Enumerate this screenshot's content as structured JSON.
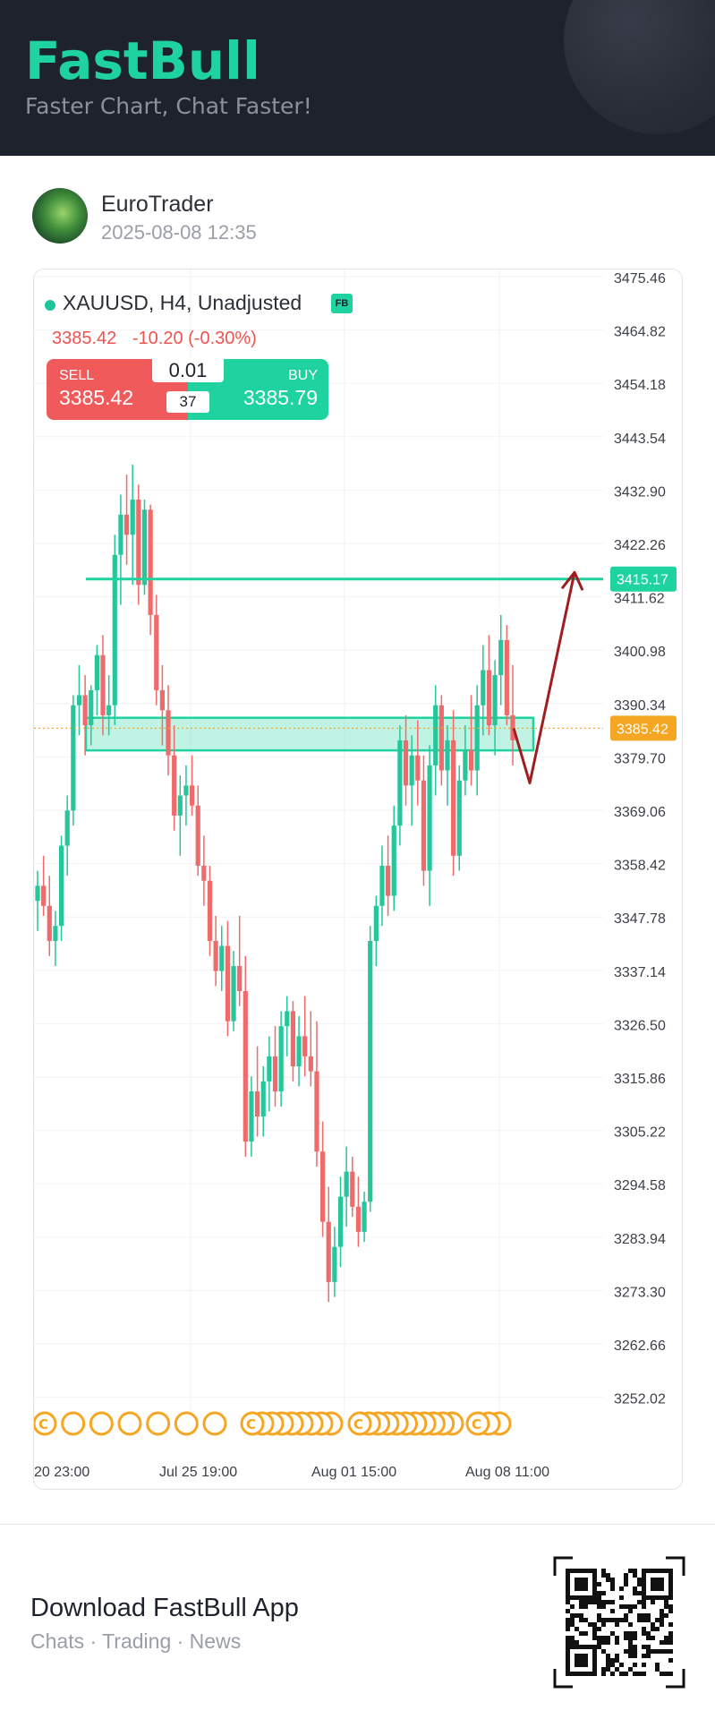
{
  "header": {
    "brand": "FastBull",
    "tagline": "Faster Chart, Chat Faster!"
  },
  "post": {
    "username": "EuroTrader",
    "datetime": "2025-08-08 12:35"
  },
  "instrument": {
    "label": "XAUUSD, H4, Unadjusted",
    "badge": "FB",
    "last_price": "3385.42",
    "change": "-10.20 (-0.30%)"
  },
  "trade_widget": {
    "sell_label": "SELL",
    "sell_price": "3385.42",
    "buy_label": "BUY",
    "buy_price": "3385.79",
    "quantity": "0.01",
    "spread": "37"
  },
  "chart_data": {
    "type": "candlestick",
    "symbol": "XAUUSD",
    "timeframe": "H4",
    "y_ticks": [
      "3475.46",
      "3464.82",
      "3454.18",
      "3443.54",
      "3432.90",
      "3422.26",
      "3411.62",
      "3400.98",
      "3390.34",
      "3379.70",
      "3369.06",
      "3358.42",
      "3347.78",
      "3337.14",
      "3326.50",
      "3315.86",
      "3305.22",
      "3294.58",
      "3283.94",
      "3273.30",
      "3262.66",
      "3252.02"
    ],
    "y_range": [
      3252.02,
      3475.46
    ],
    "x_ticks": [
      "20 23:00",
      "Jul 25 19:00",
      "Aug 01 15:00",
      "Aug 08 11:00"
    ],
    "current_price_label": "3385.42",
    "resistance_label": "3415.17",
    "resistance_level": 3415.17,
    "support_zone": [
      3381.0,
      3387.5
    ],
    "projection_path": [
      3385.42,
      3374.5,
      3416.5
    ],
    "ohlc_sequence": [
      [
        3351,
        3357,
        3345,
        3354
      ],
      [
        3354,
        3360,
        3348,
        3350
      ],
      [
        3350,
        3356,
        3340,
        3343
      ],
      [
        3343,
        3349,
        3338,
        3346
      ],
      [
        3346,
        3364,
        3343,
        3362
      ],
      [
        3362,
        3372,
        3356,
        3369
      ],
      [
        3369,
        3392,
        3366,
        3390
      ],
      [
        3390,
        3398,
        3384,
        3392
      ],
      [
        3392,
        3396,
        3380,
        3386
      ],
      [
        3386,
        3394,
        3382,
        3393
      ],
      [
        3393,
        3402,
        3388,
        3400
      ],
      [
        3400,
        3404,
        3384,
        3388
      ],
      [
        3388,
        3396,
        3384,
        3390
      ],
      [
        3390,
        3424,
        3386,
        3420
      ],
      [
        3420,
        3432,
        3410,
        3428
      ],
      [
        3428,
        3436,
        3418,
        3424
      ],
      [
        3424,
        3438,
        3414,
        3431
      ],
      [
        3431,
        3434,
        3410,
        3414
      ],
      [
        3414,
        3431,
        3412,
        3429
      ],
      [
        3429,
        3430,
        3404,
        3408
      ],
      [
        3408,
        3412,
        3390,
        3393
      ],
      [
        3393,
        3398,
        3382,
        3389
      ],
      [
        3389,
        3394,
        3376,
        3380
      ],
      [
        3380,
        3386,
        3365,
        3368
      ],
      [
        3368,
        3376,
        3360,
        3372
      ],
      [
        3372,
        3378,
        3366,
        3374
      ],
      [
        3374,
        3380,
        3368,
        3370
      ],
      [
        3370,
        3374,
        3356,
        3358
      ],
      [
        3358,
        3364,
        3350,
        3355
      ],
      [
        3355,
        3358,
        3340,
        3343
      ],
      [
        3343,
        3348,
        3334,
        3337
      ],
      [
        3337,
        3346,
        3333,
        3342
      ],
      [
        3342,
        3347,
        3324,
        3327
      ],
      [
        3327,
        3341,
        3325,
        3338
      ],
      [
        3338,
        3348,
        3330,
        3333
      ],
      [
        3333,
        3340,
        3300,
        3303
      ],
      [
        3303,
        3316,
        3300,
        3313
      ],
      [
        3313,
        3322,
        3304,
        3308
      ],
      [
        3308,
        3318,
        3304,
        3315
      ],
      [
        3315,
        3324,
        3309,
        3320
      ],
      [
        3320,
        3326,
        3310,
        3313
      ],
      [
        3313,
        3329,
        3310,
        3326
      ],
      [
        3326,
        3332,
        3320,
        3329
      ],
      [
        3329,
        3331,
        3315,
        3318
      ],
      [
        3318,
        3328,
        3314,
        3324
      ],
      [
        3324,
        3332,
        3316,
        3320
      ],
      [
        3320,
        3329,
        3314,
        3317
      ],
      [
        3317,
        3327,
        3298,
        3301
      ],
      [
        3301,
        3307,
        3284,
        3287
      ],
      [
        3287,
        3294,
        3271,
        3275
      ],
      [
        3275,
        3286,
        3272,
        3282
      ],
      [
        3282,
        3296,
        3278,
        3292
      ],
      [
        3292,
        3302,
        3286,
        3297
      ],
      [
        3297,
        3300,
        3288,
        3290
      ],
      [
        3290,
        3296,
        3282,
        3285
      ],
      [
        3285,
        3293,
        3283,
        3291
      ],
      [
        3291,
        3346,
        3289,
        3343
      ],
      [
        3343,
        3352,
        3338,
        3350
      ],
      [
        3350,
        3362,
        3346,
        3358
      ],
      [
        3358,
        3364,
        3348,
        3352
      ],
      [
        3352,
        3370,
        3349,
        3366
      ],
      [
        3366,
        3386,
        3362,
        3383
      ],
      [
        3383,
        3388,
        3370,
        3374
      ],
      [
        3374,
        3384,
        3366,
        3380
      ],
      [
        3380,
        3387,
        3370,
        3375
      ],
      [
        3375,
        3380,
        3354,
        3357
      ],
      [
        3357,
        3382,
        3350,
        3378
      ],
      [
        3378,
        3394,
        3372,
        3390
      ],
      [
        3390,
        3392,
        3374,
        3377
      ],
      [
        3377,
        3386,
        3370,
        3383
      ],
      [
        3383,
        3389,
        3356,
        3360
      ],
      [
        3360,
        3378,
        3357,
        3375
      ],
      [
        3375,
        3386,
        3372,
        3381
      ],
      [
        3381,
        3392,
        3374,
        3377
      ],
      [
        3377,
        3394,
        3372,
        3390
      ],
      [
        3390,
        3402,
        3384,
        3397
      ],
      [
        3397,
        3404,
        3384,
        3386
      ],
      [
        3386,
        3399,
        3380,
        3396
      ],
      [
        3396,
        3408,
        3390,
        3403
      ],
      [
        3403,
        3406,
        3386,
        3388
      ],
      [
        3388,
        3398,
        3378,
        3383
      ]
    ]
  },
  "footer": {
    "download_title": "Download FastBull App",
    "download_subtitle": "Chats · Trading · News"
  },
  "colors": {
    "header_bg": "#1e222d",
    "brand": "#1fd3a0",
    "bull": "#26c69b",
    "bear": "#ef6a6a",
    "resistance": "#1fd3a0",
    "current_price": "#f5a623",
    "projection": "#a11d21"
  }
}
